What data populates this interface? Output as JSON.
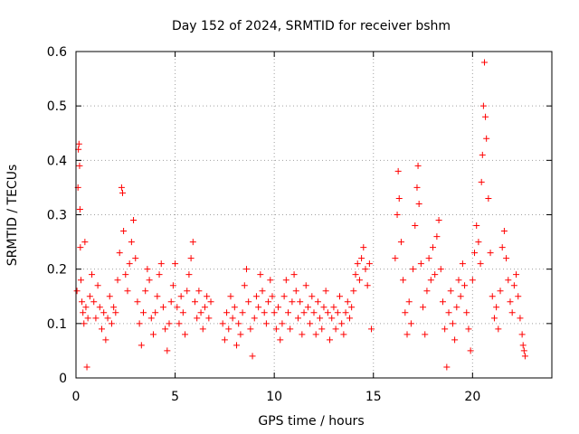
{
  "chart_data": {
    "type": "scatter",
    "title": "Day 152 of 2024, SRMTID for receiver bshm",
    "xlabel": "GPS time / hours",
    "ylabel": "SRMTID / TECUs",
    "xlim": [
      0,
      24
    ],
    "ylim": [
      0,
      0.6
    ],
    "xticks": [
      0,
      5,
      10,
      15,
      20
    ],
    "xtick_labels": [
      "0",
      "5",
      "10",
      "15",
      "20"
    ],
    "yticks": [
      0,
      0.1,
      0.2,
      0.3,
      0.4,
      0.5,
      0.6
    ],
    "ytick_labels": [
      "0",
      "0.1",
      "0.2",
      "0.3",
      "0.4",
      "0.5",
      "0.6"
    ],
    "grid": true,
    "marker": "+",
    "color": "#ff0000",
    "series": [
      {
        "name": "SRMTID",
        "points": [
          [
            0.05,
            0.16
          ],
          [
            0.1,
            0.35
          ],
          [
            0.12,
            0.42
          ],
          [
            0.15,
            0.43
          ],
          [
            0.18,
            0.39
          ],
          [
            0.2,
            0.31
          ],
          [
            0.22,
            0.24
          ],
          [
            0.25,
            0.18
          ],
          [
            0.3,
            0.14
          ],
          [
            0.35,
            0.12
          ],
          [
            0.4,
            0.1
          ],
          [
            0.45,
            0.25
          ],
          [
            0.5,
            0.13
          ],
          [
            0.55,
            0.02
          ],
          [
            0.6,
            0.11
          ],
          [
            0.7,
            0.15
          ],
          [
            0.8,
            0.19
          ],
          [
            0.9,
            0.14
          ],
          [
            1.0,
            0.11
          ],
          [
            1.1,
            0.17
          ],
          [
            1.2,
            0.13
          ],
          [
            1.3,
            0.09
          ],
          [
            1.4,
            0.12
          ],
          [
            1.5,
            0.07
          ],
          [
            1.6,
            0.11
          ],
          [
            1.7,
            0.15
          ],
          [
            1.8,
            0.1
          ],
          [
            1.9,
            0.13
          ],
          [
            2.0,
            0.12
          ],
          [
            2.1,
            0.18
          ],
          [
            2.2,
            0.23
          ],
          [
            2.3,
            0.35
          ],
          [
            2.35,
            0.34
          ],
          [
            2.4,
            0.27
          ],
          [
            2.5,
            0.19
          ],
          [
            2.6,
            0.16
          ],
          [
            2.7,
            0.21
          ],
          [
            2.8,
            0.25
          ],
          [
            2.9,
            0.29
          ],
          [
            3.0,
            0.22
          ],
          [
            3.1,
            0.14
          ],
          [
            3.2,
            0.1
          ],
          [
            3.3,
            0.06
          ],
          [
            3.4,
            0.12
          ],
          [
            3.5,
            0.16
          ],
          [
            3.6,
            0.2
          ],
          [
            3.7,
            0.18
          ],
          [
            3.8,
            0.11
          ],
          [
            3.9,
            0.08
          ],
          [
            4.0,
            0.12
          ],
          [
            4.1,
            0.15
          ],
          [
            4.2,
            0.19
          ],
          [
            4.3,
            0.21
          ],
          [
            4.4,
            0.13
          ],
          [
            4.5,
            0.09
          ],
          [
            4.6,
            0.05
          ],
          [
            4.7,
            0.1
          ],
          [
            4.8,
            0.14
          ],
          [
            4.9,
            0.17
          ],
          [
            5.0,
            0.21
          ],
          [
            5.1,
            0.13
          ],
          [
            5.2,
            0.1
          ],
          [
            5.3,
            0.15
          ],
          [
            5.4,
            0.12
          ],
          [
            5.5,
            0.08
          ],
          [
            5.6,
            0.16
          ],
          [
            5.7,
            0.19
          ],
          [
            5.8,
            0.22
          ],
          [
            5.9,
            0.25
          ],
          [
            6.0,
            0.14
          ],
          [
            6.1,
            0.11
          ],
          [
            6.2,
            0.16
          ],
          [
            6.3,
            0.12
          ],
          [
            6.4,
            0.09
          ],
          [
            6.5,
            0.13
          ],
          [
            6.6,
            0.15
          ],
          [
            6.7,
            0.11
          ],
          [
            6.8,
            0.14
          ],
          [
            7.4,
            0.1
          ],
          [
            7.5,
            0.07
          ],
          [
            7.6,
            0.12
          ],
          [
            7.7,
            0.09
          ],
          [
            7.8,
            0.15
          ],
          [
            7.9,
            0.11
          ],
          [
            8.0,
            0.13
          ],
          [
            8.1,
            0.06
          ],
          [
            8.2,
            0.1
          ],
          [
            8.3,
            0.08
          ],
          [
            8.4,
            0.12
          ],
          [
            8.5,
            0.17
          ],
          [
            8.6,
            0.2
          ],
          [
            8.7,
            0.14
          ],
          [
            8.8,
            0.09
          ],
          [
            8.9,
            0.04
          ],
          [
            9.0,
            0.11
          ],
          [
            9.1,
            0.15
          ],
          [
            9.2,
            0.13
          ],
          [
            9.3,
            0.19
          ],
          [
            9.4,
            0.16
          ],
          [
            9.5,
            0.12
          ],
          [
            9.6,
            0.1
          ],
          [
            9.7,
            0.14
          ],
          [
            9.8,
            0.18
          ],
          [
            9.9,
            0.15
          ],
          [
            10.0,
            0.12
          ],
          [
            10.1,
            0.09
          ],
          [
            10.2,
            0.13
          ],
          [
            10.3,
            0.07
          ],
          [
            10.4,
            0.1
          ],
          [
            10.5,
            0.15
          ],
          [
            10.6,
            0.18
          ],
          [
            10.7,
            0.12
          ],
          [
            10.8,
            0.09
          ],
          [
            10.9,
            0.14
          ],
          [
            11.0,
            0.19
          ],
          [
            11.1,
            0.16
          ],
          [
            11.2,
            0.11
          ],
          [
            11.3,
            0.14
          ],
          [
            11.4,
            0.08
          ],
          [
            11.5,
            0.12
          ],
          [
            11.6,
            0.17
          ],
          [
            11.7,
            0.13
          ],
          [
            11.8,
            0.1
          ],
          [
            11.9,
            0.15
          ],
          [
            12.0,
            0.12
          ],
          [
            12.1,
            0.08
          ],
          [
            12.2,
            0.14
          ],
          [
            12.3,
            0.11
          ],
          [
            12.4,
            0.09
          ],
          [
            12.5,
            0.13
          ],
          [
            12.6,
            0.16
          ],
          [
            12.7,
            0.12
          ],
          [
            12.8,
            0.07
          ],
          [
            12.9,
            0.11
          ],
          [
            13.0,
            0.13
          ],
          [
            13.1,
            0.09
          ],
          [
            13.2,
            0.12
          ],
          [
            13.3,
            0.15
          ],
          [
            13.4,
            0.1
          ],
          [
            13.5,
            0.08
          ],
          [
            13.6,
            0.12
          ],
          [
            13.7,
            0.14
          ],
          [
            13.8,
            0.11
          ],
          [
            13.9,
            0.13
          ],
          [
            14.0,
            0.16
          ],
          [
            14.1,
            0.19
          ],
          [
            14.2,
            0.21
          ],
          [
            14.3,
            0.18
          ],
          [
            14.4,
            0.22
          ],
          [
            14.5,
            0.24
          ],
          [
            14.6,
            0.2
          ],
          [
            14.7,
            0.17
          ],
          [
            14.8,
            0.21
          ],
          [
            14.9,
            0.09
          ],
          [
            16.1,
            0.22
          ],
          [
            16.2,
            0.3
          ],
          [
            16.25,
            0.38
          ],
          [
            16.3,
            0.33
          ],
          [
            16.4,
            0.25
          ],
          [
            16.5,
            0.18
          ],
          [
            16.6,
            0.12
          ],
          [
            16.7,
            0.08
          ],
          [
            16.8,
            0.14
          ],
          [
            16.9,
            0.1
          ],
          [
            17.0,
            0.2
          ],
          [
            17.1,
            0.28
          ],
          [
            17.2,
            0.35
          ],
          [
            17.25,
            0.39
          ],
          [
            17.3,
            0.32
          ],
          [
            17.4,
            0.21
          ],
          [
            17.5,
            0.13
          ],
          [
            17.6,
            0.08
          ],
          [
            17.7,
            0.16
          ],
          [
            17.8,
            0.22
          ],
          [
            17.9,
            0.18
          ],
          [
            18.0,
            0.24
          ],
          [
            18.1,
            0.19
          ],
          [
            18.2,
            0.26
          ],
          [
            18.3,
            0.29
          ],
          [
            18.4,
            0.2
          ],
          [
            18.5,
            0.14
          ],
          [
            18.6,
            0.09
          ],
          [
            18.7,
            0.02
          ],
          [
            18.8,
            0.12
          ],
          [
            18.9,
            0.16
          ],
          [
            19.0,
            0.1
          ],
          [
            19.1,
            0.07
          ],
          [
            19.2,
            0.13
          ],
          [
            19.3,
            0.18
          ],
          [
            19.4,
            0.15
          ],
          [
            19.5,
            0.21
          ],
          [
            19.6,
            0.17
          ],
          [
            19.7,
            0.12
          ],
          [
            19.8,
            0.09
          ],
          [
            19.9,
            0.05
          ],
          [
            20.0,
            0.18
          ],
          [
            20.1,
            0.23
          ],
          [
            20.2,
            0.28
          ],
          [
            20.3,
            0.25
          ],
          [
            20.4,
            0.21
          ],
          [
            20.45,
            0.36
          ],
          [
            20.5,
            0.41
          ],
          [
            20.55,
            0.5
          ],
          [
            20.6,
            0.58
          ],
          [
            20.65,
            0.48
          ],
          [
            20.7,
            0.44
          ],
          [
            20.8,
            0.33
          ],
          [
            20.9,
            0.23
          ],
          [
            21.0,
            0.15
          ],
          [
            21.1,
            0.11
          ],
          [
            21.2,
            0.13
          ],
          [
            21.3,
            0.09
          ],
          [
            21.4,
            0.16
          ],
          [
            21.5,
            0.24
          ],
          [
            21.6,
            0.27
          ],
          [
            21.7,
            0.22
          ],
          [
            21.8,
            0.18
          ],
          [
            21.9,
            0.14
          ],
          [
            22.0,
            0.12
          ],
          [
            22.1,
            0.17
          ],
          [
            22.2,
            0.19
          ],
          [
            22.3,
            0.15
          ],
          [
            22.4,
            0.11
          ],
          [
            22.5,
            0.08
          ],
          [
            22.55,
            0.06
          ],
          [
            22.6,
            0.05
          ],
          [
            22.65,
            0.04
          ]
        ]
      }
    ]
  }
}
